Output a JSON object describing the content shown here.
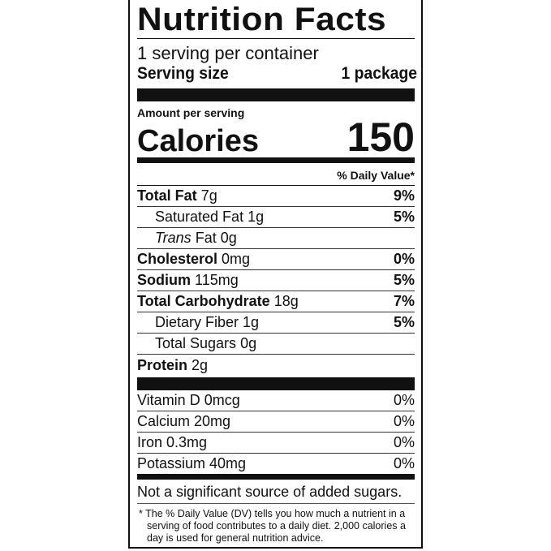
{
  "title": "Nutrition Facts",
  "servings_per_container": "1 serving per container",
  "serving_size": {
    "label": "Serving size",
    "value": "1 package"
  },
  "amount_per_serving": "Amount per serving",
  "calories": {
    "label": "Calories",
    "value": "150"
  },
  "daily_value_header": "% Daily Value*",
  "nutrients": [
    {
      "name": "Total Fat",
      "amount": "7g",
      "dv": "9%"
    },
    {
      "name": "Saturated Fat",
      "amount": "1g",
      "dv": "5%"
    },
    {
      "name": "Trans",
      "name_rest": "Fat",
      "amount": "0g",
      "dv": ""
    },
    {
      "name": "Cholesterol",
      "amount": "0mg",
      "dv": "0%"
    },
    {
      "name": "Sodium",
      "amount": "115mg",
      "dv": "5%"
    },
    {
      "name": "Total Carbohydrate",
      "amount": "18g",
      "dv": "7%"
    },
    {
      "name": "Dietary Fiber",
      "amount": "1g",
      "dv": "5%"
    },
    {
      "name": "Total Sugars",
      "amount": "0g",
      "dv": ""
    },
    {
      "name": "Protein",
      "amount": "2g",
      "dv": ""
    }
  ],
  "vitamins": [
    {
      "text": "Vitamin D 0mcg",
      "dv": "0%"
    },
    {
      "text": "Calcium 20mg",
      "dv": "0%"
    },
    {
      "text": "Iron 0.3mg",
      "dv": "0%"
    },
    {
      "text": "Potassium 40mg",
      "dv": "0%"
    }
  ],
  "added_sugars_note": "Not a significant source of added sugars.",
  "footnote": "* The % Daily Value (DV) tells you how much a nutrient in a serving of food contributes to a daily diet. 2,000 calories a day is used for general nutrition advice."
}
